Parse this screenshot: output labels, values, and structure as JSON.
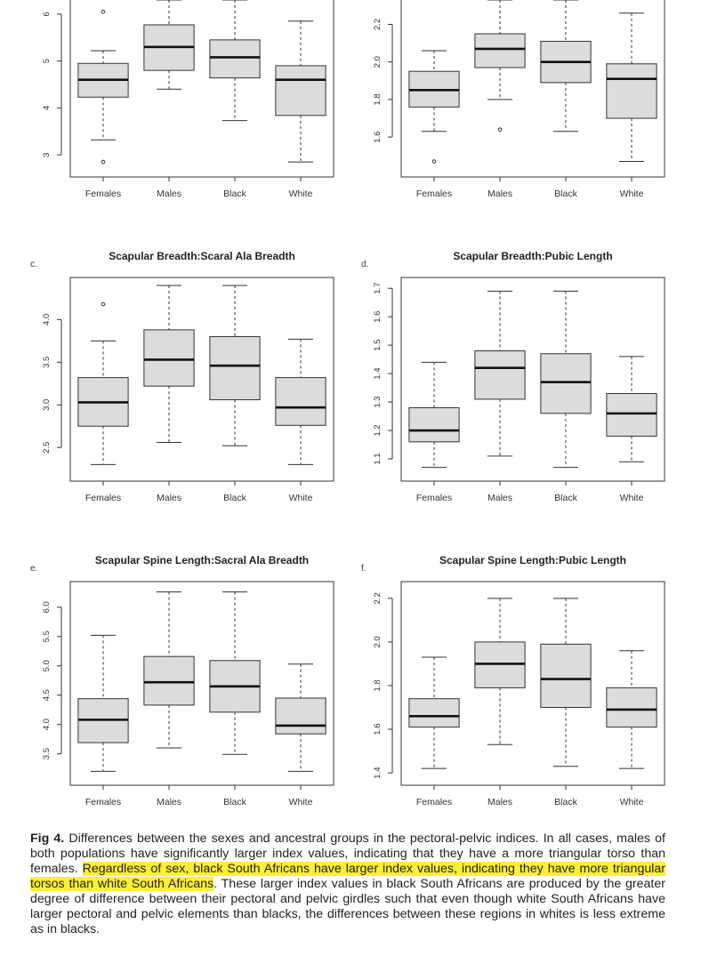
{
  "colors": {
    "box_fill": "#dcdcdc",
    "stroke": "#333333",
    "highlight": "#ffee33"
  },
  "caption": {
    "label": "Fig 4.",
    "text_before": " Differences between the sexes and ancestral groups in the pectoral-pelvic indices. In all cases, males of both populations have significantly larger index values, indicating that they have a more triangular torso than females. ",
    "highlight": "Regardless of sex, black South Africans have larger index values, indicating they have more triangular torsos than white South Africans",
    "text_after": ". These larger index values in black South Africans are produced by the greater degree of difference between their pectoral and pelvic girdles such that even though white South Africans have larger pectoral and pelvic elements than blacks, the differences between these regions in whites is less extreme as in blacks."
  },
  "chart_data": [
    {
      "panel": "a",
      "type": "box",
      "title": "",
      "panel_label": "",
      "categories": [
        "Females",
        "Males",
        "Black",
        "White"
      ],
      "ylim": [
        2.7,
        6.3
      ],
      "yticks": [
        3,
        4,
        5,
        6
      ],
      "boxes": [
        {
          "min": 3.32,
          "q1": 4.23,
          "median": 4.6,
          "q3": 4.95,
          "max": 5.22,
          "outliers": [
            6.05,
            2.85
          ]
        },
        {
          "min": 4.4,
          "q1": 4.8,
          "median": 5.3,
          "q3": 5.77,
          "max": 6.3,
          "outliers": []
        },
        {
          "min": 3.73,
          "q1": 4.64,
          "median": 5.08,
          "q3": 5.45,
          "max": 6.3,
          "outliers": []
        },
        {
          "min": 2.85,
          "q1": 3.84,
          "median": 4.6,
          "q3": 4.9,
          "max": 5.85,
          "outliers": []
        }
      ]
    },
    {
      "panel": "b",
      "type": "box",
      "title": "",
      "panel_label": "",
      "categories": [
        "Females",
        "Males",
        "Black",
        "White"
      ],
      "ylim": [
        1.43,
        2.33
      ],
      "yticks": [
        1.6,
        1.8,
        2.0,
        2.2
      ],
      "boxes": [
        {
          "min": 1.63,
          "q1": 1.76,
          "median": 1.85,
          "q3": 1.95,
          "max": 2.06,
          "outliers": [
            1.47
          ]
        },
        {
          "min": 1.8,
          "q1": 1.97,
          "median": 2.07,
          "q3": 2.15,
          "max": 2.33,
          "outliers": [
            1.64
          ]
        },
        {
          "min": 1.63,
          "q1": 1.89,
          "median": 2.0,
          "q3": 2.11,
          "max": 2.33,
          "outliers": []
        },
        {
          "min": 1.47,
          "q1": 1.7,
          "median": 1.91,
          "q3": 1.99,
          "max": 2.26,
          "outliers": []
        }
      ]
    },
    {
      "panel": "c",
      "type": "box",
      "title": "Scapular Breadth:Scaral Ala Breadth",
      "panel_label": "c.",
      "categories": [
        "Females",
        "Males",
        "Black",
        "White"
      ],
      "ylim": [
        2.2,
        4.4
      ],
      "yticks": [
        2.5,
        3.0,
        3.5,
        4.0
      ],
      "boxes": [
        {
          "min": 2.3,
          "q1": 2.75,
          "median": 3.03,
          "q3": 3.32,
          "max": 3.75,
          "outliers": [
            4.18
          ]
        },
        {
          "min": 2.56,
          "q1": 3.22,
          "median": 3.53,
          "q3": 3.88,
          "max": 4.4,
          "outliers": []
        },
        {
          "min": 2.52,
          "q1": 3.06,
          "median": 3.46,
          "q3": 3.8,
          "max": 4.4,
          "outliers": []
        },
        {
          "min": 2.3,
          "q1": 2.76,
          "median": 2.97,
          "q3": 3.32,
          "max": 3.77,
          "outliers": []
        }
      ]
    },
    {
      "panel": "d",
      "type": "box",
      "title": "Scapular Breadth:Pubic Length",
      "panel_label": "d.",
      "categories": [
        "Females",
        "Males",
        "Black",
        "White"
      ],
      "ylim": [
        1.05,
        1.71
      ],
      "yticks": [
        1.1,
        1.2,
        1.3,
        1.4,
        1.5,
        1.6,
        1.7
      ],
      "boxes": [
        {
          "min": 1.07,
          "q1": 1.16,
          "median": 1.2,
          "q3": 1.28,
          "max": 1.44,
          "outliers": []
        },
        {
          "min": 1.11,
          "q1": 1.31,
          "median": 1.42,
          "q3": 1.48,
          "max": 1.69,
          "outliers": []
        },
        {
          "min": 1.07,
          "q1": 1.26,
          "median": 1.37,
          "q3": 1.47,
          "max": 1.69,
          "outliers": []
        },
        {
          "min": 1.09,
          "q1": 1.18,
          "median": 1.26,
          "q3": 1.33,
          "max": 1.46,
          "outliers": []
        }
      ]
    },
    {
      "panel": "e",
      "type": "box",
      "title": "Scapular Spine Length:Sacral Ala Breadth",
      "panel_label": "e.",
      "categories": [
        "Females",
        "Males",
        "Black",
        "White"
      ],
      "ylim": [
        3.1,
        6.3
      ],
      "yticks": [
        3.5,
        4.0,
        4.5,
        5.0,
        5.5,
        6.0
      ],
      "boxes": [
        {
          "min": 3.2,
          "q1": 3.69,
          "median": 4.08,
          "q3": 4.44,
          "max": 5.52,
          "outliers": []
        },
        {
          "min": 3.6,
          "q1": 4.33,
          "median": 4.72,
          "q3": 5.16,
          "max": 6.26,
          "outliers": []
        },
        {
          "min": 3.49,
          "q1": 4.21,
          "median": 4.65,
          "q3": 5.09,
          "max": 6.26,
          "outliers": []
        },
        {
          "min": 3.2,
          "q1": 3.84,
          "median": 3.98,
          "q3": 4.45,
          "max": 5.03,
          "outliers": []
        }
      ]
    },
    {
      "panel": "f",
      "type": "box",
      "title": "Scapular Spine Length:Pubic Length",
      "panel_label": "f.",
      "categories": [
        "Females",
        "Males",
        "Black",
        "White"
      ],
      "ylim": [
        1.38,
        2.24
      ],
      "yticks": [
        1.4,
        1.6,
        1.8,
        2.0,
        2.2
      ],
      "boxes": [
        {
          "min": 1.42,
          "q1": 1.61,
          "median": 1.66,
          "q3": 1.74,
          "max": 1.93,
          "outliers": []
        },
        {
          "min": 1.53,
          "q1": 1.79,
          "median": 1.9,
          "q3": 2.0,
          "max": 2.2,
          "outliers": []
        },
        {
          "min": 1.43,
          "q1": 1.7,
          "median": 1.83,
          "q3": 1.99,
          "max": 2.2,
          "outliers": []
        },
        {
          "min": 1.42,
          "q1": 1.61,
          "median": 1.69,
          "q3": 1.79,
          "max": 1.96,
          "outliers": []
        }
      ]
    }
  ]
}
